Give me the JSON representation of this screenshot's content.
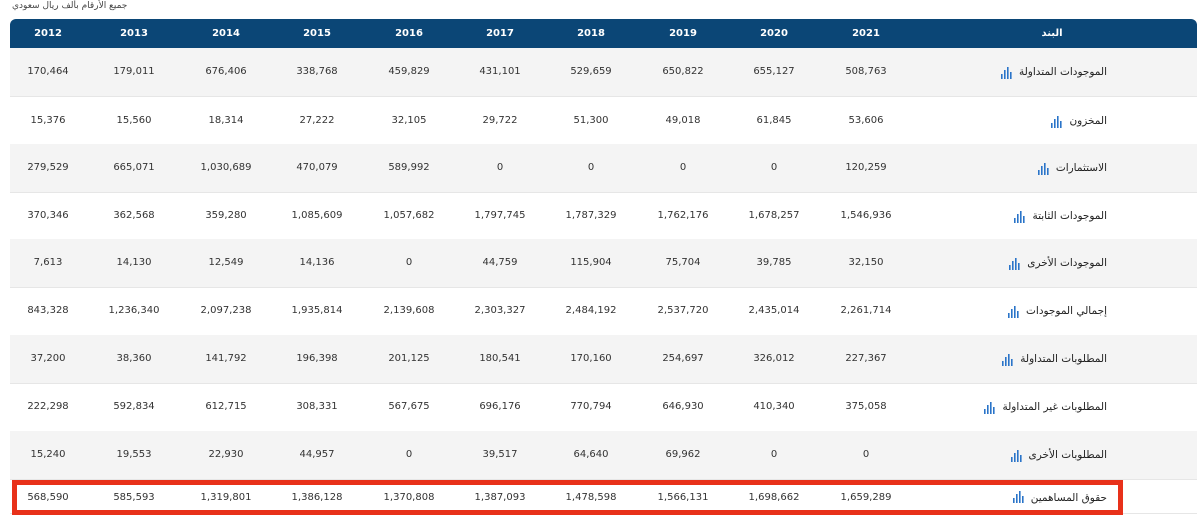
{
  "note": "جميع الأرقام بألف ريال سعودي",
  "header": {
    "item_label": "البند",
    "years": [
      "2021",
      "2020",
      "2019",
      "2018",
      "2017",
      "2016",
      "2015",
      "2014",
      "2013",
      "2012"
    ]
  },
  "rows": [
    {
      "label": "الموجودات المتداولة",
      "values": [
        "508,763",
        "655,127",
        "650,822",
        "529,659",
        "431,101",
        "459,829",
        "338,768",
        "676,406",
        "179,011",
        "170,464"
      ]
    },
    {
      "label": "المخزون",
      "values": [
        "53,606",
        "61,845",
        "49,018",
        "51,300",
        "29,722",
        "32,105",
        "27,222",
        "18,314",
        "15,560",
        "15,376"
      ]
    },
    {
      "label": "الاستثمارات",
      "values": [
        "120,259",
        "0",
        "0",
        "0",
        "0",
        "589,992",
        "470,079",
        "1,030,689",
        "665,071",
        "279,529"
      ]
    },
    {
      "label": "الموجودات الثابتة",
      "values": [
        "1,546,936",
        "1,678,257",
        "1,762,176",
        "1,787,329",
        "1,797,745",
        "1,057,682",
        "1,085,609",
        "359,280",
        "362,568",
        "370,346"
      ]
    },
    {
      "label": "الموجودات الأخرى",
      "values": [
        "32,150",
        "39,785",
        "75,704",
        "115,904",
        "44,759",
        "0",
        "14,136",
        "12,549",
        "14,130",
        "7,613"
      ]
    },
    {
      "label": "إجمالي الموجودات",
      "values": [
        "2,261,714",
        "2,435,014",
        "2,537,720",
        "2,484,192",
        "2,303,327",
        "2,139,608",
        "1,935,814",
        "2,097,238",
        "1,236,340",
        "843,328"
      ]
    },
    {
      "label": "المطلوبات المتداولة",
      "values": [
        "227,367",
        "326,012",
        "254,697",
        "170,160",
        "180,541",
        "201,125",
        "196,398",
        "141,792",
        "38,360",
        "37,200"
      ]
    },
    {
      "label": "المطلوبات غير المتداولة",
      "values": [
        "375,058",
        "410,340",
        "646,930",
        "770,794",
        "696,176",
        "567,675",
        "308,331",
        "612,715",
        "592,834",
        "222,298"
      ]
    },
    {
      "label": "المطلوبات الأخرى",
      "values": [
        "0",
        "0",
        "69,962",
        "64,640",
        "39,517",
        "0",
        "44,957",
        "22,930",
        "19,553",
        "15,240"
      ]
    },
    {
      "label": "حقوق المساهمين",
      "values": [
        "1,659,289",
        "1,698,662",
        "1,566,131",
        "1,478,598",
        "1,387,093",
        "1,370,808",
        "1,386,128",
        "1,319,801",
        "585,593",
        "568,590"
      ]
    }
  ],
  "colors": {
    "header_bg": "#0b4676",
    "highlight": "#e8311a",
    "icon": "#2a74c9"
  }
}
